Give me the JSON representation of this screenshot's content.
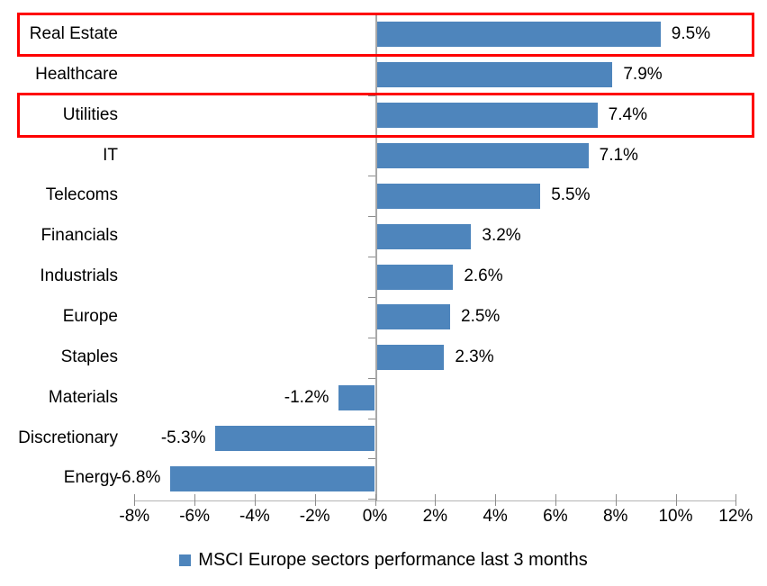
{
  "chart_data": {
    "type": "bar",
    "orientation": "horizontal",
    "categories": [
      "Real Estate",
      "Healthcare",
      "Utilities",
      "IT",
      "Telecoms",
      "Financials",
      "Industrials",
      "Europe",
      "Staples",
      "Materials",
      "Discretionary",
      "Energy"
    ],
    "values": [
      9.5,
      7.9,
      7.4,
      7.1,
      5.5,
      3.2,
      2.6,
      2.5,
      2.3,
      -1.2,
      -5.3,
      -6.8
    ],
    "value_labels": [
      "9.5%",
      "7.9%",
      "7.4%",
      "7.1%",
      "5.5%",
      "3.2%",
      "2.6%",
      "2.5%",
      "2.3%",
      "-1.2%",
      "-5.3%",
      "-6.8%"
    ],
    "x_tick_values": [
      -8,
      -6,
      -4,
      -2,
      0,
      2,
      4,
      6,
      8,
      10,
      12
    ],
    "x_tick_labels": [
      "-8%",
      "-6%",
      "-4%",
      "-2%",
      "0%",
      "2%",
      "4%",
      "6%",
      "8%",
      "10%",
      "12%"
    ],
    "xlim": [
      -8,
      12
    ],
    "grid": false,
    "bar_color": "#4e85bc",
    "axis_color": "#a8a8a8",
    "highlight_color": "#fe0000",
    "highlighted_categories": [
      "Real Estate",
      "Utilities"
    ],
    "legend": {
      "position": "bottom",
      "label": "MSCI Europe sectors performance last 3 months",
      "marker_color": "#4e85bc"
    }
  }
}
